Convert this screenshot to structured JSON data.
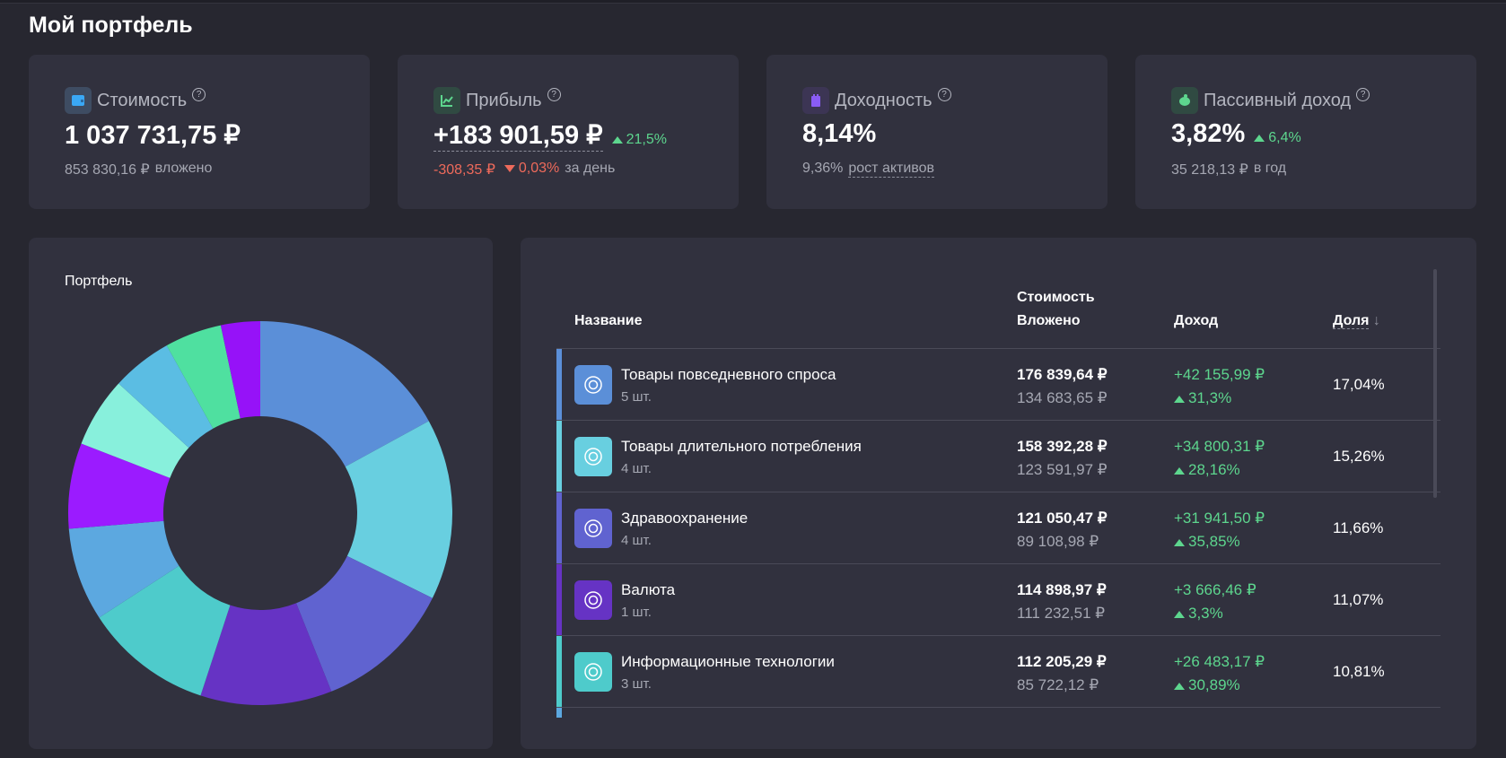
{
  "page_title": "Мой портфель",
  "cards": [
    {
      "label": "Стоимость",
      "icon": "wallet-icon",
      "icon_color": "#3aa8f5",
      "value": "1 037 731,75 ₽",
      "sub_value": "853 830,16 ₽",
      "sub_label": "вложено"
    },
    {
      "label": "Прибыль",
      "icon": "chart-up-icon",
      "icon_color": "#5dd68e",
      "value": "+183 901,59 ₽",
      "change": "21,5%",
      "day_value": "-308,35 ₽",
      "day_change": "0,03%",
      "day_label": "за день"
    },
    {
      "label": "Доходность",
      "icon": "calendar-icon",
      "icon_color": "#8a5cf5",
      "value": "8,14%",
      "sub_value": "9,36%",
      "sub_label": "рост активов"
    },
    {
      "label": "Пассивный доход",
      "icon": "piggy-bank-icon",
      "icon_color": "#5dd68e",
      "value": "3,82%",
      "change": "6,4%",
      "sub_value": "35 218,13 ₽",
      "sub_label": "в год"
    }
  ],
  "help_glyph": "?",
  "chart_panel": {
    "title": "Портфель"
  },
  "chart_data": {
    "type": "pie",
    "donut": true,
    "values": [
      17.04,
      15.26,
      11.66,
      11.07,
      10.81,
      7.86,
      7.2,
      5.9,
      5.1,
      4.8,
      3.3
    ],
    "colors": [
      "#5b8fd8",
      "#68cfe0",
      "#6063d0",
      "#6633c4",
      "#4ecbcb",
      "#5ca8e0",
      "#9b1bff",
      "#88f0dc",
      "#5bbde3",
      "#4fe0a0",
      "#9612f8"
    ]
  },
  "table": {
    "headers": {
      "name": "Название",
      "value": "Стоимость",
      "invested": "Вложено",
      "income": "Доход",
      "share": "Доля"
    },
    "rows": [
      {
        "name": "Товары повседневного спроса",
        "count": "5 шт.",
        "value": "176 839,64 ₽",
        "invested": "134 683,65 ₽",
        "income": "+42 155,99 ₽",
        "income_pct": "31,3%",
        "share": "17,04%",
        "color": "#5b8fd8"
      },
      {
        "name": "Товары длительного потребления",
        "count": "4 шт.",
        "value": "158 392,28 ₽",
        "invested": "123 591,97 ₽",
        "income": "+34 800,31 ₽",
        "income_pct": "28,16%",
        "share": "15,26%",
        "color": "#68cfe0"
      },
      {
        "name": "Здравоохранение",
        "count": "4 шт.",
        "value": "121 050,47 ₽",
        "invested": "89 108,98 ₽",
        "income": "+31 941,50 ₽",
        "income_pct": "35,85%",
        "share": "11,66%",
        "color": "#6063d0"
      },
      {
        "name": "Валюта",
        "count": "1 шт.",
        "value": "114 898,97 ₽",
        "invested": "111 232,51 ₽",
        "income": "+3 666,46 ₽",
        "income_pct": "3,3%",
        "share": "11,07%",
        "color": "#6633c4"
      },
      {
        "name": "Информационные технологии",
        "count": "3 шт.",
        "value": "112 205,29 ₽",
        "invested": "85 722,12 ₽",
        "income": "+26 483,17 ₽",
        "income_pct": "30,89%",
        "share": "10,81%",
        "color": "#4ecbcb"
      }
    ]
  }
}
